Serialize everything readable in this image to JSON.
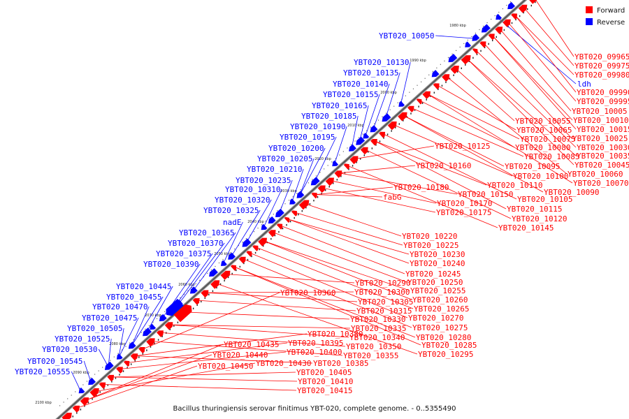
{
  "title": "Bacillus thuringiensis serovar finitimus YBT-020, complete genome. - 0..5355490",
  "legend": [
    {
      "label": "Forward",
      "color": "#ff0000"
    },
    {
      "label": "Reverse",
      "color": "#0000ff"
    }
  ],
  "colors": {
    "forward": "#ff0000",
    "reverse": "#0000ff",
    "backbone": "#999999"
  },
  "ticks": [
    "1980 kbp",
    "1990 kbp",
    "2000 kbp",
    "2010 kbp",
    "2020 kbp",
    "2030 kbp",
    "2040 kbp",
    "2050 kbp",
    "2060 kbp",
    "2070 kbp",
    "2080 kbp",
    "2090 kbp",
    "2100 kbp"
  ],
  "reverse_labels": [
    "YBT020_10050",
    "YBT020_10130",
    "YBT020_10135",
    "YBT020_10140",
    "YBT020_10155",
    "YBT020_10165",
    "YBT020_10185",
    "YBT020_10190",
    "YBT020_10195",
    "YBT020_10200",
    "YBT020_10205",
    "YBT020_10210",
    "YBT020_10235",
    "YBT020_10310",
    "YBT020_10320",
    "YBT020_10325",
    "nadE",
    "YBT020_10365",
    "YBT020_10370",
    "YBT020_10375",
    "YBT020_10390",
    "YBT020_10445",
    "YBT020_10455",
    "YBT020_10470",
    "YBT020_10475",
    "YBT020_10505",
    "YBT020_10525",
    "YBT020_10530",
    "YBT020_10545",
    "YBT020_10555",
    "ldh"
  ],
  "forward_labels": [
    "YBT020_09965",
    "YBT020_09975",
    "YBT020_09980",
    "YBT020_09990",
    "YBT020_09995",
    "YBT020_10005",
    "YBT020_10010",
    "YBT020_10015",
    "YBT020_10025",
    "YBT020_10030",
    "YBT020_10035",
    "YBT020_10045",
    "YBT020_10055",
    "YBT020_10060",
    "YBT020_10065",
    "YBT020_10070",
    "YBT020_10075",
    "YBT020_10080",
    "YBT020_10085",
    "YBT020_10090",
    "YBT020_10095",
    "YBT020_10100",
    "YBT020_10105",
    "YBT020_10110",
    "YBT020_10115",
    "YBT020_10120",
    "YBT020_10125",
    "YBT020_10145",
    "YBT020_10150",
    "YBT020_10160",
    "YBT020_10170",
    "YBT020_10175",
    "YBT020_10180",
    "fabG",
    "YBT020_10220",
    "YBT020_10225",
    "YBT020_10230",
    "YBT020_10240",
    "YBT020_10245",
    "YBT020_10250",
    "YBT020_10255",
    "YBT020_10260",
    "YBT020_10265",
    "YBT020_10270",
    "YBT020_10275",
    "YBT020_10280",
    "YBT020_10285",
    "YBT020_10290",
    "YBT020_10295",
    "YBT020_10300",
    "YBT020_10305",
    "YBT020_10315",
    "YBT020_10330",
    "YBT020_10335",
    "YBT020_10340",
    "YBT020_10350",
    "YBT020_10355",
    "YBT020_10360",
    "YBT020_10380",
    "YBT020_10385",
    "YBT020_10395",
    "YBT020_10400",
    "YBT020_10405",
    "YBT020_10410",
    "YBT020_10415",
    "YBT020_10430",
    "YBT020_10435",
    "YBT020_10440",
    "YBT020_10450"
  ]
}
